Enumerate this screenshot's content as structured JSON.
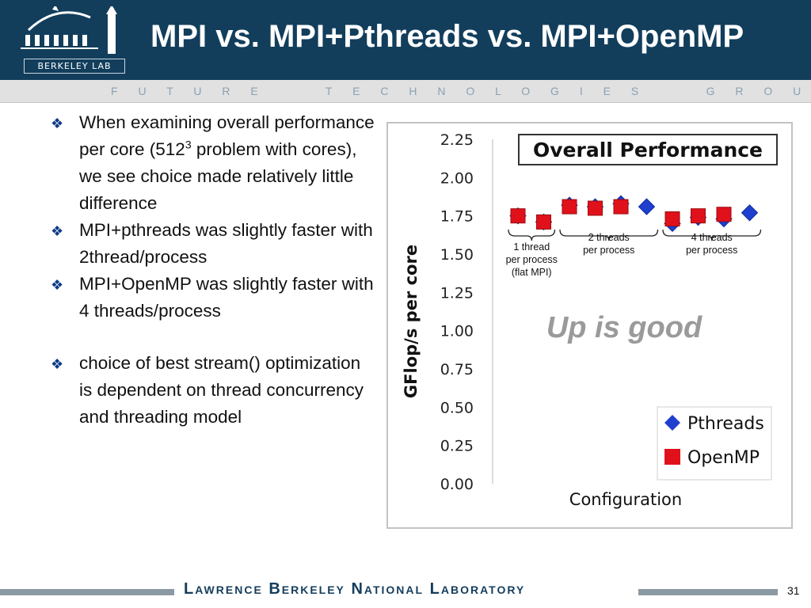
{
  "header": {
    "logo_text": "BERKELEY LAB",
    "title": "MPI vs. MPI+Pthreads vs. MPI+OpenMP"
  },
  "subheader": {
    "text": "F U T U R E     T E C H N O L O G I E S     G R O U P"
  },
  "bullets": {
    "b1_pre": "When examining overall performance per core (512",
    "b1_sup": "3",
    "b1_post": " problem with cores), we see choice made relatively little difference",
    "b2": "MPI+pthreads was slightly faster with 2thread/process",
    "b3": "MPI+OpenMP was slightly faster with 4 threads/process",
    "b4": "choice of best stream() optimization is dependent on thread concurrency and threading model"
  },
  "chart_data": {
    "type": "scatter",
    "title": "Overall Performance",
    "xlabel": "Configuration",
    "ylabel": "GFlop/s per core",
    "ylim": [
      0,
      2.25
    ],
    "yticks": [
      0.0,
      0.25,
      0.5,
      0.75,
      1.0,
      1.25,
      1.5,
      1.75,
      2.0,
      2.25
    ],
    "ytick_labels": [
      "0.00",
      "0.25",
      "0.50",
      "0.75",
      "1.00",
      "1.25",
      "1.50",
      "1.75",
      "2.00",
      "2.25"
    ],
    "x": [
      1,
      2,
      3,
      4,
      5,
      6,
      7,
      8,
      9,
      10,
      11
    ],
    "series": [
      {
        "name": "Pthreads",
        "color": "#1f3fcf",
        "marker": "diamond",
        "values": [
          1.75,
          1.71,
          1.82,
          1.81,
          1.83,
          1.81,
          1.7,
          1.74,
          1.73,
          1.77,
          null
        ]
      },
      {
        "name": "OpenMP",
        "color": "#e0111b",
        "marker": "square",
        "values": [
          1.75,
          1.71,
          1.81,
          1.8,
          1.81,
          null,
          1.73,
          1.75,
          1.76,
          null,
          null
        ]
      }
    ],
    "groups": [
      {
        "from": 1,
        "to": 2,
        "label_lines": [
          "1 thread",
          "per process",
          "(flat MPI)"
        ]
      },
      {
        "from": 3,
        "to": 6,
        "label_lines": [
          "2 threads",
          "per process"
        ]
      },
      {
        "from": 7,
        "to": 10,
        "label_lines": [
          "4 threads",
          "per process"
        ]
      }
    ],
    "annotation": "Up is good",
    "legend_position": "bottom-right",
    "grid": false
  },
  "footer": {
    "lab_name": "Lawrence Berkeley National Laboratory",
    "page_number": "31"
  }
}
